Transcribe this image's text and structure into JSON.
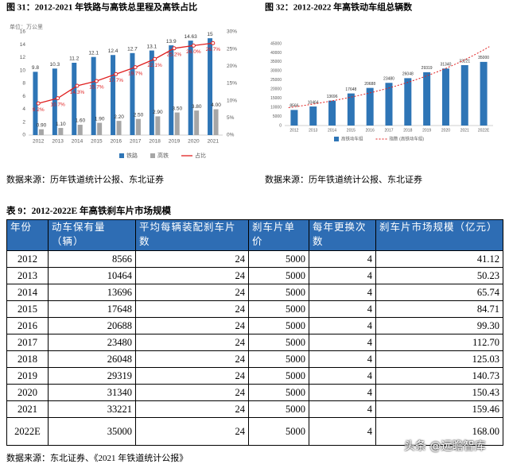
{
  "chart_data": [
    {
      "type": "bar_line",
      "title": "图 31：2012-2021 年铁路与高铁总里程及高铁占比",
      "unit_label": "单位：万公里",
      "categories": [
        "2012",
        "2013",
        "2014",
        "2015",
        "2016",
        "2017",
        "2018",
        "2019",
        "2020",
        "2021"
      ],
      "series": [
        {
          "name": "铁路",
          "type": "bar",
          "color": "#2e75b6",
          "values": [
            9.8,
            10.3,
            11.2,
            12.1,
            12.4,
            12.7,
            13.1,
            13.9,
            14.63,
            15
          ]
        },
        {
          "name": "高铁",
          "type": "bar",
          "color": "#a6a6a6",
          "values": [
            0.9,
            1.1,
            1.6,
            1.9,
            2.2,
            2.5,
            2.9,
            3.5,
            3.8,
            4.0
          ],
          "value_labels": [
            "0.90",
            "1.10",
            "1.60",
            "1.90",
            "2.20",
            "2.50",
            "2.90",
            "3.50",
            "3.80",
            "4.00"
          ]
        },
        {
          "name": "占比",
          "type": "line",
          "axis": "y2",
          "color": "#e02020",
          "values": [
            9.2,
            10.7,
            14.3,
            15.7,
            17.7,
            19.7,
            22.1,
            25.2,
            26.0,
            26.7
          ],
          "value_labels": [
            "9.2%",
            "10.7%",
            "14.3%",
            "15.7%",
            "17.7%",
            "19.7%",
            "22.1%",
            "25.2%",
            "26.0%",
            "26.7%"
          ]
        }
      ],
      "ylim": [
        0,
        16
      ],
      "yticks": [
        0,
        2,
        4,
        6,
        8,
        10,
        12,
        14,
        16
      ],
      "y2lim": [
        0,
        30
      ],
      "y2ticks": [
        {
          "value": 0,
          "label": "0%"
        },
        {
          "value": 5,
          "label": "5%"
        },
        {
          "value": 10,
          "label": "10%"
        },
        {
          "value": 15,
          "label": "15%"
        },
        {
          "value": 20,
          "label": "20%"
        },
        {
          "value": 25,
          "label": "25%"
        },
        {
          "value": 30,
          "label": "30%"
        }
      ],
      "grid": false,
      "legend": "bottom",
      "source": "数据来源：历年铁道统计公报、东北证券"
    },
    {
      "type": "bar",
      "title": "图 32：2012-2022 年高铁动车组总辆数",
      "categories": [
        "2012",
        "2013",
        "2014",
        "2015",
        "2016",
        "2017",
        "2018",
        "2019",
        "2020",
        "2021",
        "2022E"
      ],
      "series": [
        {
          "name": "高铁动车组",
          "type": "bar",
          "color": "#2e75b6",
          "values": [
            8566,
            10464,
            13696,
            17648,
            20688,
            23480,
            26048,
            29319,
            31340,
            33221,
            35000
          ]
        }
      ],
      "trendline": {
        "name": "指数 (高铁动车组)",
        "kind": "exponential",
        "color": "#e02020"
      },
      "ylim": [
        0,
        45000
      ],
      "yticks": [
        0,
        5000,
        10000,
        15000,
        20000,
        25000,
        30000,
        35000,
        40000,
        45000
      ],
      "grid": false,
      "legend": "bottom",
      "source": "数据来源：历年铁道统计公报、东北证券"
    }
  ],
  "table": {
    "title": "表 9：2012-2022E 年高铁刹车片市场规模",
    "header": [
      "年份",
      "动车保有量（辆）",
      "平均每辆装配刹车片数",
      "刹车片单价",
      "每年更换次数",
      "刹车片市场规模（亿元）"
    ],
    "rows": [
      [
        "2012",
        "8566",
        "24",
        "5000",
        "4",
        "41.12"
      ],
      [
        "2013",
        "10464",
        "24",
        "5000",
        "4",
        "50.23"
      ],
      [
        "2014",
        "13696",
        "24",
        "5000",
        "4",
        "65.74"
      ],
      [
        "2015",
        "17648",
        "24",
        "5000",
        "4",
        "84.71"
      ],
      [
        "2016",
        "20688",
        "24",
        "5000",
        "4",
        "99.30"
      ],
      [
        "2017",
        "23480",
        "24",
        "5000",
        "4",
        "112.70"
      ],
      [
        "2018",
        "26048",
        "24",
        "5000",
        "4",
        "125.03"
      ],
      [
        "2019",
        "29319",
        "24",
        "5000",
        "4",
        "140.73"
      ],
      [
        "2020",
        "31340",
        "24",
        "5000",
        "4",
        "150.43"
      ],
      [
        "2021",
        "33221",
        "24",
        "5000",
        "4",
        "159.46"
      ],
      [
        "2022E",
        "35000",
        "24",
        "5000",
        "4",
        "168.00"
      ]
    ],
    "source": "数据来源：东北证券、《2021 年铁道统计公报》"
  },
  "watermark": "头条 @远瞻智库"
}
